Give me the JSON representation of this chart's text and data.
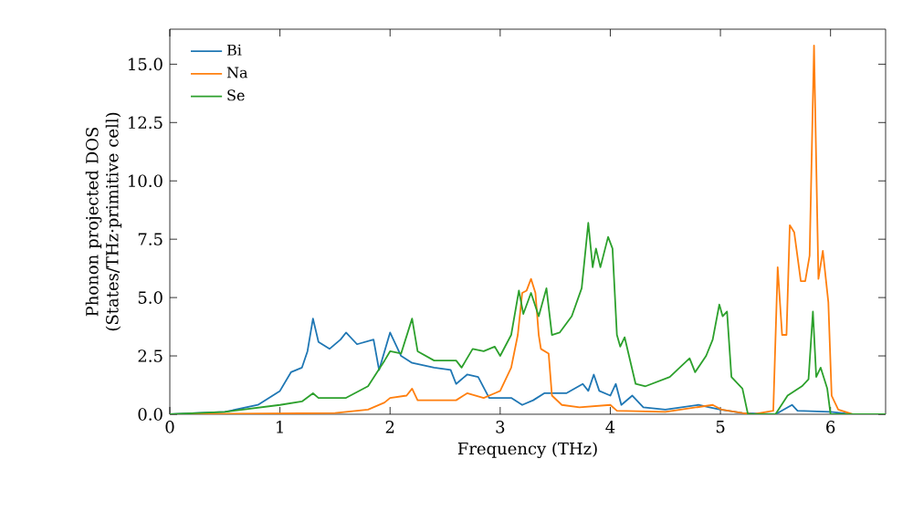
{
  "chart_data": {
    "type": "line",
    "xlabel": "Frequency (THz)",
    "ylabel": "Phonon projected DOS (States/THz·primitive cell)",
    "xlim": [
      0,
      6.5
    ],
    "ylim": [
      0,
      16.5
    ],
    "xticks": [
      0,
      1,
      2,
      3,
      4,
      5,
      6
    ],
    "yticks": [
      {
        "value": 0,
        "label": "0.0"
      },
      {
        "value": 2.5,
        "label": "2.5"
      },
      {
        "value": 5,
        "label": "5.0"
      },
      {
        "value": 7.5,
        "label": "7.5"
      },
      {
        "value": 10,
        "label": "10.0"
      },
      {
        "value": 12.5,
        "label": "12.5"
      },
      {
        "value": 15,
        "label": "15.0"
      }
    ],
    "legend": "top left",
    "grid": false,
    "marker": "none",
    "line_style": "solid",
    "series": [
      {
        "name": "Bi",
        "color": "#1f77b4",
        "x": [
          0,
          0.5,
          0.8,
          1.0,
          1.1,
          1.2,
          1.25,
          1.3,
          1.35,
          1.45,
          1.55,
          1.6,
          1.7,
          1.85,
          1.9,
          2.0,
          2.1,
          2.2,
          2.4,
          2.55,
          2.6,
          2.7,
          2.8,
          2.9,
          3.1,
          3.2,
          3.3,
          3.4,
          3.6,
          3.75,
          3.8,
          3.85,
          3.9,
          4.0,
          4.05,
          4.1,
          4.2,
          4.3,
          4.5,
          4.8,
          4.9,
          5.0,
          5.2,
          5.5,
          5.65,
          5.7,
          6.0,
          6.2,
          6.5
        ],
        "values": [
          0,
          0.1,
          0.4,
          1.0,
          1.8,
          2.0,
          2.7,
          4.1,
          3.1,
          2.8,
          3.2,
          3.5,
          3.0,
          3.2,
          1.9,
          3.5,
          2.5,
          2.2,
          2.0,
          1.9,
          1.3,
          1.7,
          1.6,
          0.7,
          0.7,
          0.4,
          0.6,
          0.9,
          0.9,
          1.3,
          1.0,
          1.7,
          1.0,
          0.8,
          1.3,
          0.4,
          0.8,
          0.3,
          0.2,
          0.4,
          0.3,
          0.2,
          0.05,
          0,
          0.4,
          0.15,
          0.1,
          0,
          0
        ]
      },
      {
        "name": "Na",
        "color": "#ff7f0e",
        "x": [
          0,
          1.5,
          1.8,
          1.95,
          2.0,
          2.15,
          2.2,
          2.25,
          2.6,
          2.7,
          2.85,
          2.95,
          3.0,
          3.1,
          3.16,
          3.2,
          3.24,
          3.28,
          3.32,
          3.35,
          3.37,
          3.44,
          3.47,
          3.56,
          3.72,
          4.0,
          4.06,
          4.5,
          4.93,
          5.01,
          5.2,
          5.3,
          5.48,
          5.52,
          5.56,
          5.6,
          5.63,
          5.67,
          5.73,
          5.77,
          5.81,
          5.85,
          5.89,
          5.93,
          5.98,
          6.01,
          6.07,
          6.2,
          6.5
        ],
        "values": [
          0,
          0.05,
          0.2,
          0.5,
          0.7,
          0.8,
          1.1,
          0.6,
          0.6,
          0.9,
          0.7,
          0.9,
          1.0,
          2.0,
          3.4,
          5.2,
          5.3,
          5.8,
          5.2,
          3.4,
          2.8,
          2.6,
          0.8,
          0.4,
          0.3,
          0.4,
          0.15,
          0.1,
          0.4,
          0.2,
          0.05,
          0,
          0.15,
          6.3,
          3.4,
          3.4,
          8.1,
          7.8,
          5.7,
          5.7,
          6.8,
          15.8,
          5.8,
          7.0,
          4.8,
          0.8,
          0.2,
          0,
          0
        ]
      },
      {
        "name": "Se",
        "color": "#2ca02c",
        "x": [
          0,
          0.5,
          1.0,
          1.2,
          1.3,
          1.35,
          1.6,
          1.8,
          1.95,
          2.0,
          2.1,
          2.2,
          2.25,
          2.4,
          2.6,
          2.65,
          2.75,
          2.85,
          2.95,
          3.0,
          3.1,
          3.17,
          3.21,
          3.28,
          3.35,
          3.42,
          3.47,
          3.54,
          3.65,
          3.74,
          3.8,
          3.84,
          3.87,
          3.91,
          3.98,
          4.02,
          4.06,
          4.09,
          4.13,
          4.23,
          4.32,
          4.54,
          4.72,
          4.77,
          4.87,
          4.93,
          4.99,
          5.02,
          5.06,
          5.1,
          5.2,
          5.25,
          5.5,
          5.61,
          5.74,
          5.8,
          5.84,
          5.87,
          5.91,
          5.97,
          6.0,
          6.5
        ],
        "values": [
          0,
          0.1,
          0.4,
          0.55,
          0.9,
          0.7,
          0.7,
          1.2,
          2.3,
          2.7,
          2.6,
          4.1,
          2.7,
          2.3,
          2.3,
          2.0,
          2.8,
          2.7,
          2.9,
          2.5,
          3.4,
          5.3,
          4.3,
          5.2,
          4.2,
          5.4,
          3.4,
          3.5,
          4.2,
          5.4,
          8.2,
          6.3,
          7.1,
          6.3,
          7.6,
          7.1,
          3.4,
          2.9,
          3.3,
          1.3,
          1.2,
          1.6,
          2.4,
          1.8,
          2.5,
          3.2,
          4.7,
          4.2,
          4.4,
          1.6,
          1.1,
          0,
          0,
          0.8,
          1.2,
          1.5,
          4.4,
          1.6,
          2.0,
          1.1,
          0,
          0
        ]
      }
    ]
  }
}
